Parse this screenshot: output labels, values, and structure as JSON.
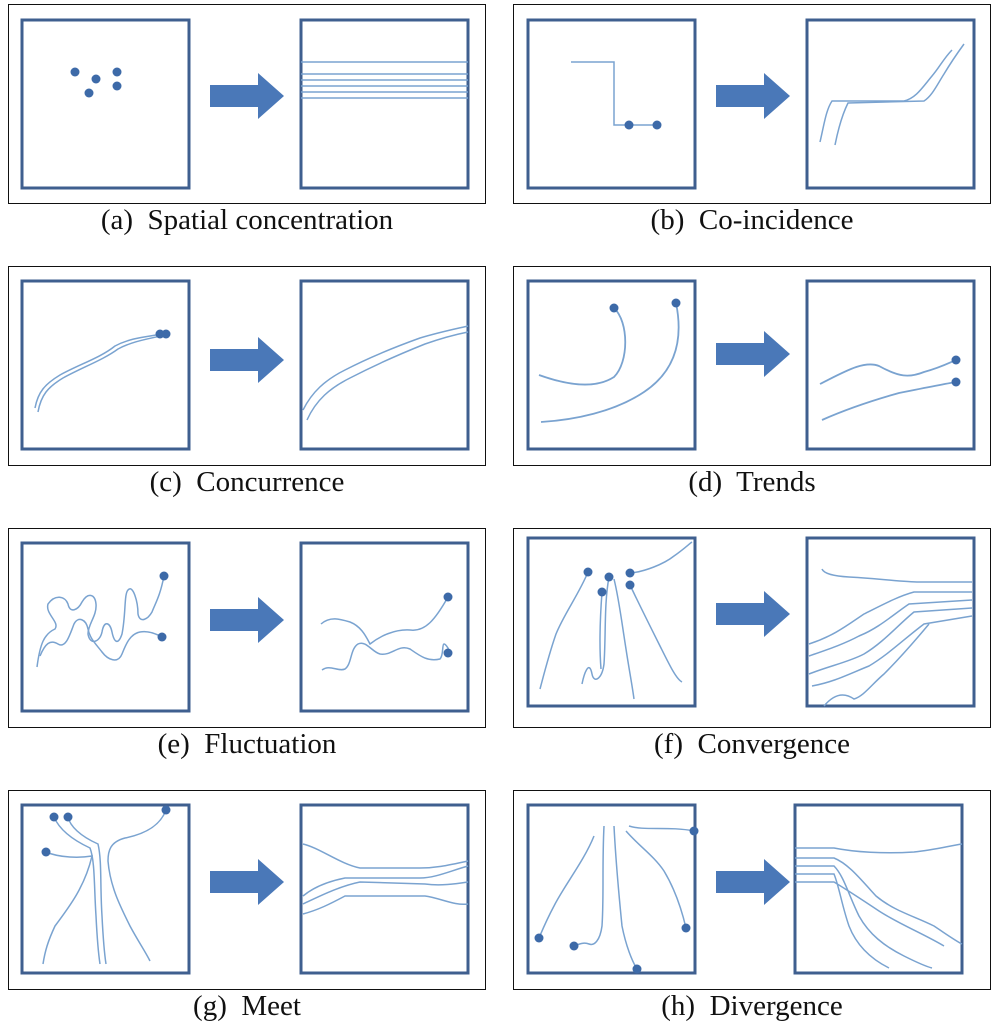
{
  "figure": {
    "panels": [
      {
        "key": "a",
        "label": "(a)",
        "title": "Spatial concentration"
      },
      {
        "key": "b",
        "label": "(b)",
        "title": "Co-incidence"
      },
      {
        "key": "c",
        "label": "(c)",
        "title": "Concurrence"
      },
      {
        "key": "d",
        "label": "(d)",
        "title": "Trends"
      },
      {
        "key": "e",
        "label": "(e)",
        "title": "Fluctuation"
      },
      {
        "key": "f",
        "label": "(f)",
        "title": "Convergence"
      },
      {
        "key": "g",
        "label": "(g)",
        "title": "Meet"
      },
      {
        "key": "h",
        "label": "(h)",
        "title": "Divergence"
      }
    ],
    "colors": {
      "line": "#7aa3d0",
      "box": "#3f5f8f",
      "dot": "#3d6aa8",
      "arrow": "#4a78b8",
      "frame": "#111111"
    }
  }
}
